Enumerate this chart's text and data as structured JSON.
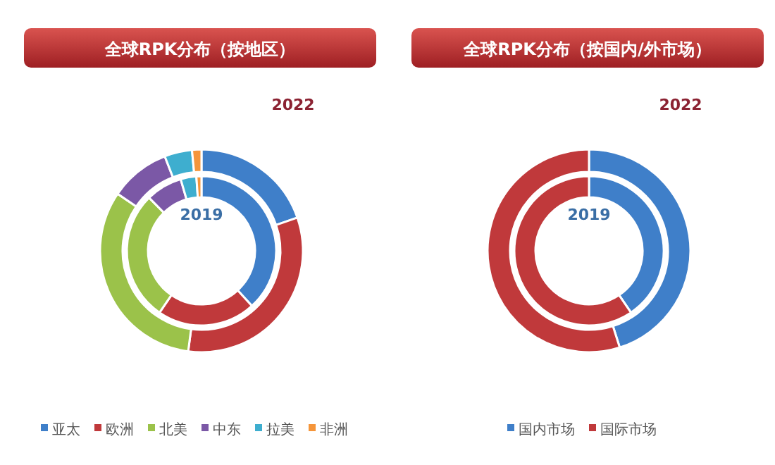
{
  "chart_data": [
    {
      "type": "donut",
      "title": "全球RPK分布（按地区）",
      "categories": [
        "亚太",
        "欧洲",
        "北美",
        "中东",
        "拉美",
        "非洲"
      ],
      "colors": [
        "#3f7fc9",
        "#c0393b",
        "#9bc24a",
        "#7b58a6",
        "#3eaecf",
        "#f5953a"
      ],
      "legend": "bottom",
      "series": [
        {
          "name": "2022",
          "values": [
            19.7,
            32.4,
            32.4,
            9.6,
            4.4,
            1.5
          ]
        },
        {
          "name": "2019",
          "values": [
            38.2,
            21.3,
            28.1,
            7.9,
            3.4,
            1.1
          ]
        }
      ]
    },
    {
      "type": "donut",
      "title": "全球RPK分布（按国内/外市场）",
      "categories": [
        "国内市场",
        "国际市场"
      ],
      "colors": [
        "#3f7fc9",
        "#c0393b"
      ],
      "legend": "bottom",
      "series": [
        {
          "name": "2022",
          "values": [
            45.1,
            54.9
          ]
        },
        {
          "name": "2019",
          "values": [
            40.5,
            59.5
          ]
        }
      ]
    }
  ]
}
